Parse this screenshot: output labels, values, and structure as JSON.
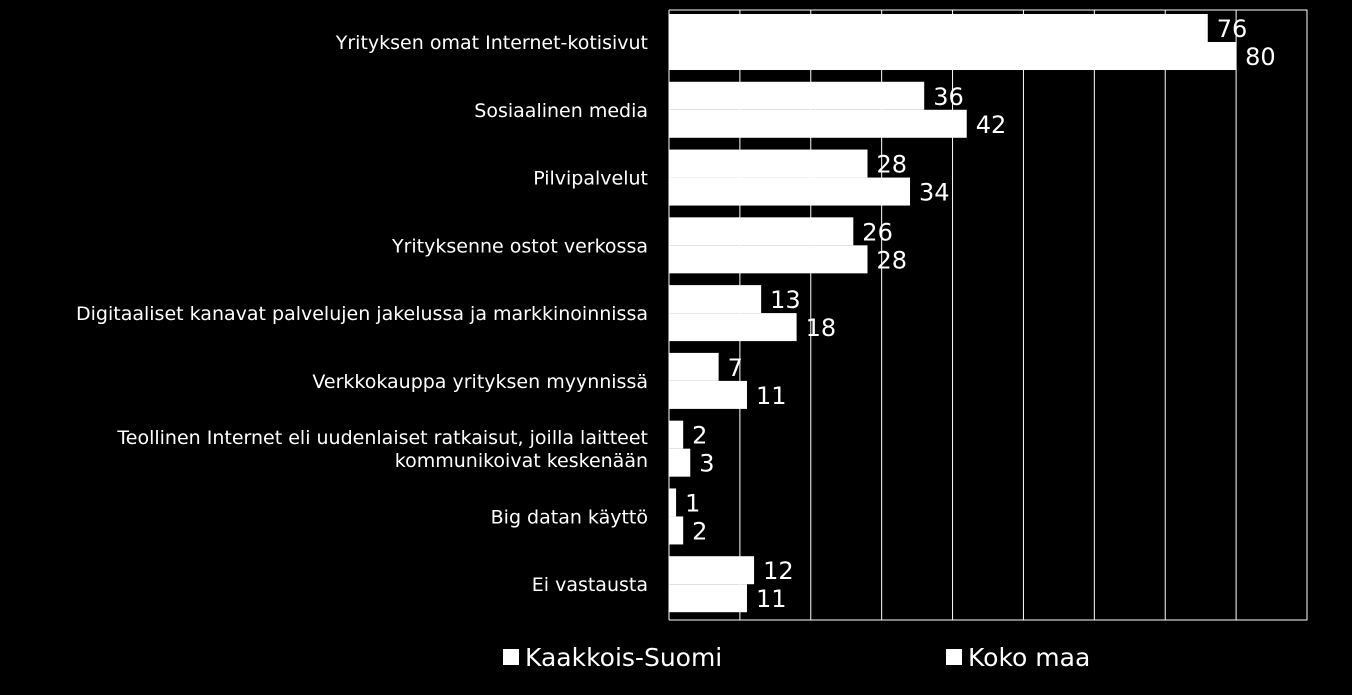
{
  "chart_data": {
    "type": "bar",
    "orientation": "horizontal",
    "categories": [
      [
        "Yrityksen omat Internet-kotisivut"
      ],
      [
        "Sosiaalinen media"
      ],
      [
        "Pilvipalvelut"
      ],
      [
        "Yrityksenne ostot verkossa"
      ],
      [
        "Digitaaliset kanavat palvelujen jakelussa ja markkinoinnissa"
      ],
      [
        "Verkkokauppa yrityksen myynnissä"
      ],
      [
        "Teollinen Internet eli uudenlaiset ratkaisut, joilla laitteet",
        "kommunikoivat keskenään"
      ],
      [
        "Big datan käyttö"
      ],
      [
        "Ei vastausta"
      ]
    ],
    "series": [
      {
        "name": "Kaakkois-Suomi",
        "values": [
          76,
          36,
          28,
          26,
          13,
          7,
          2,
          1,
          12
        ]
      },
      {
        "name": "Koko maa",
        "values": [
          80,
          42,
          34,
          28,
          18,
          11,
          3,
          2,
          11
        ]
      }
    ],
    "xlim": [
      0,
      90
    ],
    "grid": true,
    "legend_position": "bottom",
    "colors": {
      "background": "#000000",
      "bar": "#ffffff",
      "text": "#ffffff",
      "grid": "#ffffff"
    }
  }
}
